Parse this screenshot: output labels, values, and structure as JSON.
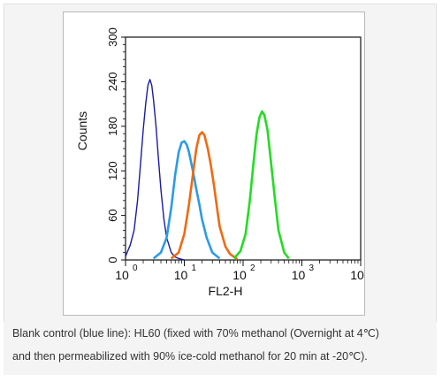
{
  "chart_data": {
    "type": "line",
    "xlabel": "FL2-H",
    "ylabel": "Counts",
    "xscale": "log",
    "xlim": [
      1,
      10000
    ],
    "ylim": [
      0,
      300
    ],
    "x_ticks": [
      {
        "base": "10",
        "exp": "0"
      },
      {
        "base": "10",
        "exp": "1"
      },
      {
        "base": "10",
        "exp": "2"
      },
      {
        "base": "10",
        "exp": "3"
      },
      {
        "base": "10",
        "exp": "4"
      }
    ],
    "y_ticks": [
      "0",
      "60",
      "120",
      "180",
      "240",
      "300"
    ],
    "grid": false,
    "series": [
      {
        "color": "#1a1aa8",
        "x": [
          1.0,
          1.2,
          1.4,
          1.6,
          1.8,
          2.0,
          2.2,
          2.4,
          2.6,
          2.8,
          3.0,
          3.3,
          3.6,
          4.0,
          4.5,
          5.0,
          6.0,
          7.0,
          8.0,
          10.0
        ],
        "y": [
          5,
          20,
          40,
          80,
          130,
          175,
          210,
          235,
          243,
          235,
          215,
          180,
          140,
          95,
          55,
          30,
          10,
          4,
          2,
          0
        ]
      },
      {
        "color": "#2b9be6",
        "x": [
          3.0,
          4.0,
          5.0,
          6.0,
          7.0,
          8.0,
          9.0,
          10.0,
          11.0,
          12.0,
          14.0,
          16.0,
          18.0,
          20.0,
          24.0,
          30.0,
          40.0
        ],
        "y": [
          2,
          10,
          30,
          70,
          115,
          145,
          158,
          160,
          155,
          145,
          120,
          95,
          75,
          55,
          30,
          10,
          2
        ]
      },
      {
        "color": "#f06a10",
        "x": [
          6.0,
          8.0,
          10.0,
          12.0,
          14.0,
          16.0,
          18.0,
          20.0,
          22.0,
          25.0,
          28.0,
          32.0,
          36.0,
          40.0,
          50.0,
          60.0,
          80.0
        ],
        "y": [
          2,
          10,
          35,
          75,
          115,
          150,
          168,
          172,
          168,
          150,
          130,
          100,
          70,
          45,
          18,
          8,
          1
        ]
      },
      {
        "color": "#22dd22",
        "x": [
          70.0,
          90.0,
          110.0,
          130.0,
          150.0,
          170.0,
          190.0,
          210.0,
          230.0,
          260.0,
          300.0,
          350.0,
          400.0,
          500.0,
          600.0
        ],
        "y": [
          2,
          12,
          35,
          80,
          130,
          170,
          192,
          200,
          195,
          175,
          130,
          80,
          40,
          10,
          2
        ]
      }
    ]
  },
  "caption": {
    "line1": "Blank control (blue line): HL60 (fixed with 70% methanol (Overnight at 4℃)",
    "line2": "and then permeabilized with 90% ice-cold methanol for 20 min at -20℃)."
  }
}
